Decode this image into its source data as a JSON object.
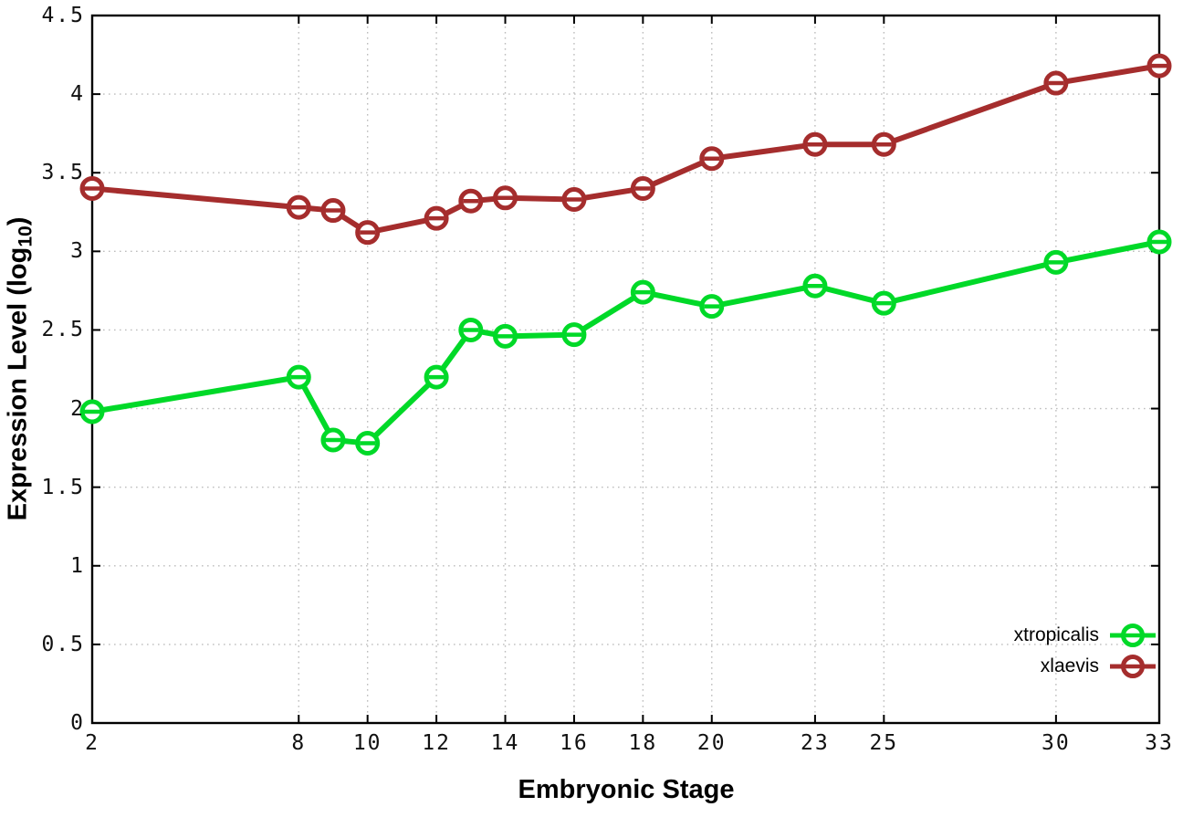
{
  "figure": {
    "background_color": "#ffffff",
    "axis_color": "#000000",
    "grid_color": "#bdbdbd",
    "tick_label_color": "#111111"
  },
  "chart_data": {
    "type": "line",
    "title": "",
    "xlabel": "Embryonic Stage",
    "ylabel": "Expression Level (log10)",
    "ylabel_parts": {
      "prefix": "Expression Level (log",
      "sub": "10",
      "suffix": ")"
    },
    "xlim": [
      2,
      33
    ],
    "ylim": [
      0,
      4.5
    ],
    "grid": true,
    "legend_position": "bottom-right",
    "x_tick_labels": [
      "2",
      "8",
      "10",
      "12",
      "14",
      "16",
      "18",
      "20",
      "23",
      "25",
      "30",
      "33"
    ],
    "x_tick_values": [
      2,
      8,
      10,
      12,
      14,
      16,
      18,
      20,
      23,
      25,
      30,
      33
    ],
    "y_tick_labels": [
      "0",
      "0.5",
      "1",
      "1.5",
      "2",
      "2.5",
      "3",
      "3.5",
      "4",
      "4.5"
    ],
    "y_tick_values": [
      0,
      0.5,
      1,
      1.5,
      2,
      2.5,
      3,
      3.5,
      4,
      4.5
    ],
    "x": [
      2,
      8,
      9,
      10,
      12,
      13,
      14,
      16,
      18,
      20,
      23,
      25,
      30,
      33
    ],
    "series": [
      {
        "name": "xtropicalis",
        "color": "#00d928",
        "values": [
          1.98,
          2.2,
          1.8,
          1.78,
          2.2,
          2.5,
          2.46,
          2.47,
          2.74,
          2.65,
          2.78,
          2.67,
          2.93,
          3.06
        ]
      },
      {
        "name": "xlaevis",
        "color": "#a52d2d",
        "values": [
          3.4,
          3.28,
          3.26,
          3.12,
          3.21,
          3.32,
          3.34,
          3.33,
          3.4,
          3.59,
          3.68,
          3.68,
          4.07,
          4.18
        ]
      }
    ]
  }
}
